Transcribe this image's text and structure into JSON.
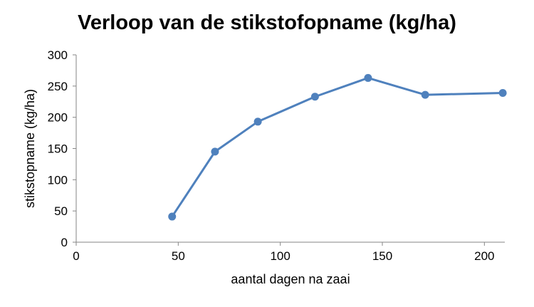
{
  "chart_data": {
    "type": "scatter",
    "title": "Verloop van de stikstofopname (kg/ha)",
    "xlabel": "aantal dagen na zaai",
    "ylabel": "stikstopname (kg/ha)",
    "xlim": [
      0,
      210
    ],
    "ylim": [
      0,
      300
    ],
    "xticks": [
      0,
      50,
      100,
      150,
      200
    ],
    "yticks": [
      0,
      50,
      100,
      150,
      200,
      250,
      300
    ],
    "grid": false,
    "legend": "none",
    "series": [
      {
        "color": "#4f81bd",
        "x": [
          47,
          68,
          89,
          117,
          143,
          171,
          209
        ],
        "y": [
          41,
          145,
          193,
          233,
          263,
          236,
          239
        ]
      }
    ]
  }
}
